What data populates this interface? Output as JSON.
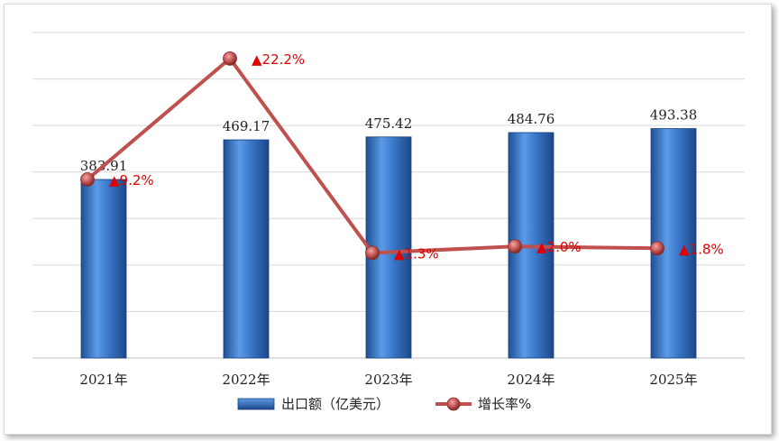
{
  "chart_data": {
    "type": "bar",
    "categories": [
      "2021年",
      "2022年",
      "2023年",
      "2024年",
      "2025年"
    ],
    "series": [
      {
        "name": "出口额（亿美元）",
        "type": "bar",
        "values": [
          383.91,
          469.17,
          475.42,
          484.76,
          493.38
        ],
        "color": "#3a78c9"
      },
      {
        "name": "增长率%",
        "type": "line",
        "values": [
          9.2,
          22.2,
          1.3,
          2.0,
          1.8
        ],
        "color": "#c0504d"
      }
    ],
    "bar_labels": [
      "383.91",
      "469.17",
      "475.42",
      "484.76",
      "493.38"
    ],
    "rate_labels": [
      "▲9.2%",
      "▲22.2%",
      "▲1.3%",
      "▲2.0%",
      "▲1.8%"
    ],
    "y_bar_range": [
      0,
      700
    ],
    "y_rate_range": [
      -10,
      25
    ],
    "grid": true,
    "legend_position": "bottom",
    "rate_label_color": "#e00000"
  }
}
